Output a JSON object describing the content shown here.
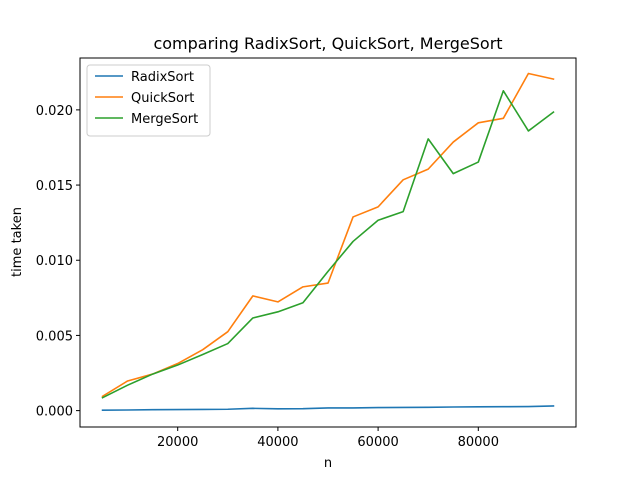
{
  "chart_data": {
    "type": "line",
    "title": "comparing  RadixSort, QuickSort, MergeSort",
    "xlabel": "n",
    "ylabel": "time taken",
    "xlim": [
      500,
      99500
    ],
    "ylim": [
      -0.00109,
      0.02345
    ],
    "x_ticks": [
      20000,
      40000,
      60000,
      80000
    ],
    "x_tick_labels": [
      "20000",
      "40000",
      "60000",
      "80000"
    ],
    "y_ticks": [
      0.0,
      0.005,
      0.01,
      0.015,
      0.02
    ],
    "y_tick_labels": [
      "0.000",
      "0.005",
      "0.010",
      "0.015",
      "0.020"
    ],
    "legend_position": "top-left",
    "grid": false,
    "x": [
      5000,
      10000,
      15000,
      20000,
      25000,
      30000,
      35000,
      40000,
      45000,
      50000,
      55000,
      60000,
      65000,
      70000,
      75000,
      80000,
      85000,
      90000,
      95000
    ],
    "series": [
      {
        "name": "RadixSort",
        "color": "#1f77b4",
        "values": [
          3e-05,
          4e-05,
          6e-05,
          7e-05,
          8e-05,
          9e-05,
          0.00015,
          0.00012,
          0.00013,
          0.00018,
          0.00018,
          0.0002,
          0.00021,
          0.00022,
          0.00024,
          0.00025,
          0.00026,
          0.00027,
          0.00031
        ]
      },
      {
        "name": "QuickSort",
        "color": "#ff7f0e",
        "values": [
          0.00095,
          0.00197,
          0.00243,
          0.00313,
          0.00405,
          0.00525,
          0.00763,
          0.00723,
          0.00823,
          0.00848,
          0.01288,
          0.01355,
          0.01535,
          0.01606,
          0.01786,
          0.01914,
          0.01944,
          0.02242,
          0.02205
        ]
      },
      {
        "name": "MergeSort",
        "color": "#2ca02c",
        "values": [
          0.00086,
          0.00169,
          0.00243,
          0.00303,
          0.00373,
          0.00446,
          0.00616,
          0.00657,
          0.00717,
          0.00926,
          0.01125,
          0.01266,
          0.01323,
          0.01807,
          0.01576,
          0.01653,
          0.02127,
          0.0186,
          0.01985
        ]
      }
    ]
  }
}
